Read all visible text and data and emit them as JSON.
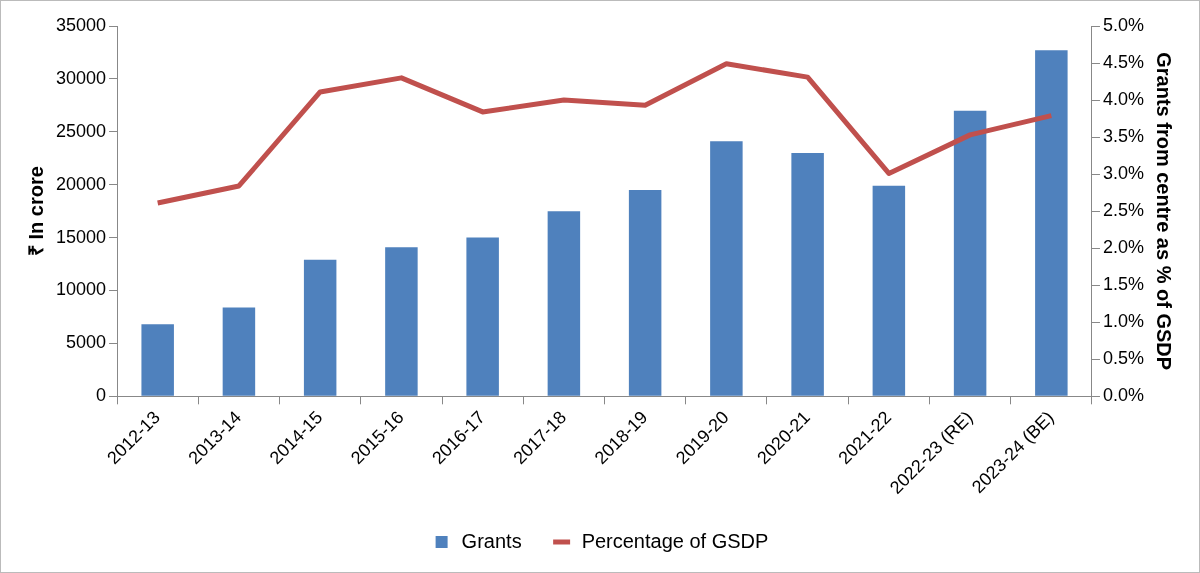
{
  "chart_data": {
    "type": "bar",
    "ylabel": "₹ In crore",
    "y2label": "Grants from centre as % of GSDP",
    "categories": [
      "2012-13",
      "2013-14",
      "2014-15",
      "2015-16",
      "2016-17",
      "2017-18",
      "2018-19",
      "2019-20",
      "2020-21",
      "2021-22",
      "2022-23 (RE)",
      "2023-24 (BE)"
    ],
    "series": [
      {
        "name": "Grants",
        "color": "#4f81bd",
        "values": [
          6800,
          8400,
          12900,
          14100,
          15000,
          17500,
          19500,
          24100,
          23000,
          19900,
          27000,
          32700
        ]
      },
      {
        "name": "Percentage of GSDP",
        "type": "line",
        "axis": "y2",
        "color": "#c0504d",
        "values": [
          2.61,
          2.84,
          4.11,
          4.3,
          3.84,
          4.0,
          3.93,
          4.49,
          4.31,
          3.01,
          3.53,
          3.79
        ]
      }
    ],
    "ylim": [
      0,
      35000
    ],
    "yticks": [
      0,
      5000,
      10000,
      15000,
      20000,
      25000,
      30000,
      35000
    ],
    "y2lim": [
      0,
      5
    ],
    "y2ticks": [
      {
        "value": 0,
        "label": "0.0%"
      },
      {
        "value": 0.5,
        "label": "0.5%"
      },
      {
        "value": 1,
        "label": "1.0%"
      },
      {
        "value": 1.5,
        "label": "1.5%"
      },
      {
        "value": 2,
        "label": "2.0%"
      },
      {
        "value": 2.5,
        "label": "2.5%"
      },
      {
        "value": 3,
        "label": "3.0%"
      },
      {
        "value": 3.5,
        "label": "3.5%"
      },
      {
        "value": 4,
        "label": "4.0%"
      },
      {
        "value": 4.5,
        "label": "4.5%"
      },
      {
        "value": 5,
        "label": "5.0%"
      }
    ],
    "grid": false,
    "legend": "bottom",
    "marker": "none"
  }
}
